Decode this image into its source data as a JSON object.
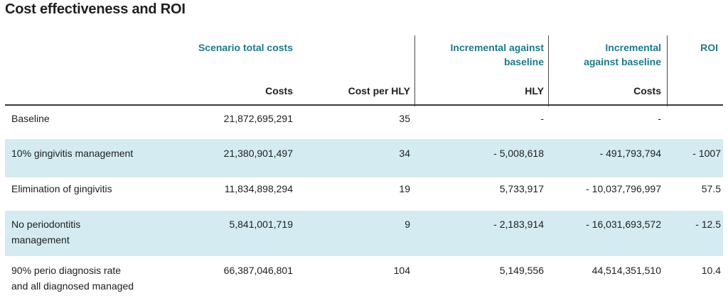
{
  "title": "Cost effectiveness and ROI",
  "header": {
    "scenario_total_costs": "Scenario total costs",
    "incremental_a_line1": "Incremental against",
    "incremental_a_line2": "baseline",
    "incremental_b_line1": "Incremental",
    "incremental_b_line2": "against baseline",
    "roi": "ROI",
    "sub_costs": "Costs",
    "sub_cost_per_hly": "Cost per HLY",
    "sub_hly": "HLY",
    "sub_costs2": "Costs"
  },
  "rows": [
    {
      "label1": "Baseline",
      "label2": "",
      "costs": "21,872,695,291",
      "cost_per_hly": "35",
      "hly": "-",
      "inc_costs": "-",
      "roi": "",
      "shaded": false
    },
    {
      "label1": "10% gingivitis management",
      "label2": "",
      "costs": "21,380,901,497",
      "cost_per_hly": "34",
      "hly": "- 5,008,618",
      "inc_costs": "- 491,793,794",
      "roi": "- 1007",
      "shaded": true
    },
    {
      "label1": "Elimination of gingivitis",
      "label2": "",
      "costs": "11,834,898,294",
      "cost_per_hly": "19",
      "hly": "5,733,917",
      "inc_costs": "- 10,037,796,997",
      "roi": "57.5",
      "shaded": false
    },
    {
      "label1": "No periodontitis",
      "label2": "management",
      "costs": "5,841,001,719",
      "cost_per_hly": "9",
      "hly": "- 2,183,914",
      "inc_costs": "- 16,031,693,572",
      "roi": "- 12.5",
      "shaded": true
    },
    {
      "label1": "90% perio diagnosis rate",
      "label2": "and all diagnosed managed",
      "costs": "66,387,046,801",
      "cost_per_hly": "104",
      "hly": "5,149,556",
      "inc_costs": "44,514,351,510",
      "roi": "10.4",
      "shaded": false
    }
  ]
}
